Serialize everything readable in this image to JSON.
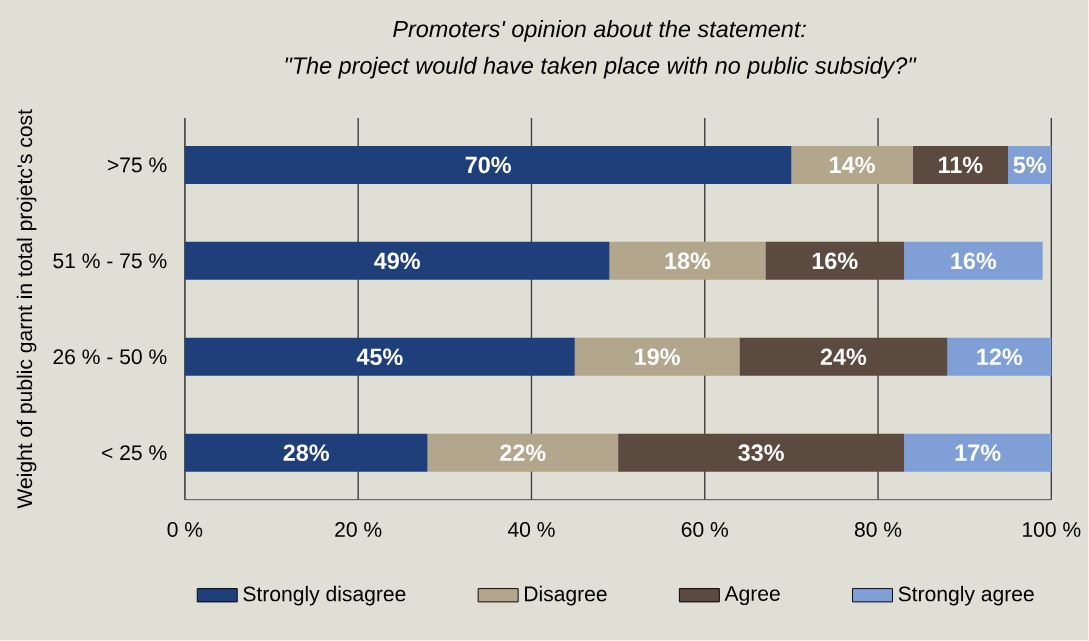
{
  "chart_data": {
    "type": "bar",
    "orientation": "horizontal",
    "stacked": true,
    "title": "Promoters' opinion about the statement:",
    "subtitle": "\"The project would have taken place with no public subsidy?\"",
    "ylabel": "Weight of public garnt in total projetc's cost",
    "categories": [
      ">75 %",
      "51 %  - 75 %",
      "26 %  - 50 %",
      "< 25 %"
    ],
    "series": [
      {
        "name": "Strongly disagree",
        "color": "#1f3f7a",
        "values": [
          70,
          49,
          45,
          28
        ],
        "value_labels": [
          "70%",
          "49%",
          "45%",
          "28%"
        ]
      },
      {
        "name": "Disagree",
        "color": "#b2a68c",
        "values": [
          14,
          18,
          19,
          22
        ],
        "value_labels": [
          "14%",
          "18%",
          "19%",
          "22%"
        ]
      },
      {
        "name": "Agree",
        "color": "#5b4a3f",
        "values": [
          11,
          16,
          24,
          33
        ],
        "value_labels": [
          "11%",
          "16%",
          "24%",
          "33%"
        ]
      },
      {
        "name": "Strongly agree",
        "color": "#7f9fd6",
        "values": [
          5,
          16,
          12,
          17
        ],
        "value_labels": [
          "5%",
          "16%",
          "12%",
          "17%"
        ]
      }
    ],
    "xlim": [
      0,
      100
    ],
    "xticks": [
      {
        "value": 0,
        "label": "0 %"
      },
      {
        "value": 20,
        "label": "20 %"
      },
      {
        "value": 40,
        "label": "40 %"
      },
      {
        "value": 60,
        "label": "60 %"
      },
      {
        "value": 80,
        "label": "80 %"
      },
      {
        "value": 100,
        "label": "100 %"
      }
    ],
    "grid": "x",
    "legend": "bottom"
  }
}
